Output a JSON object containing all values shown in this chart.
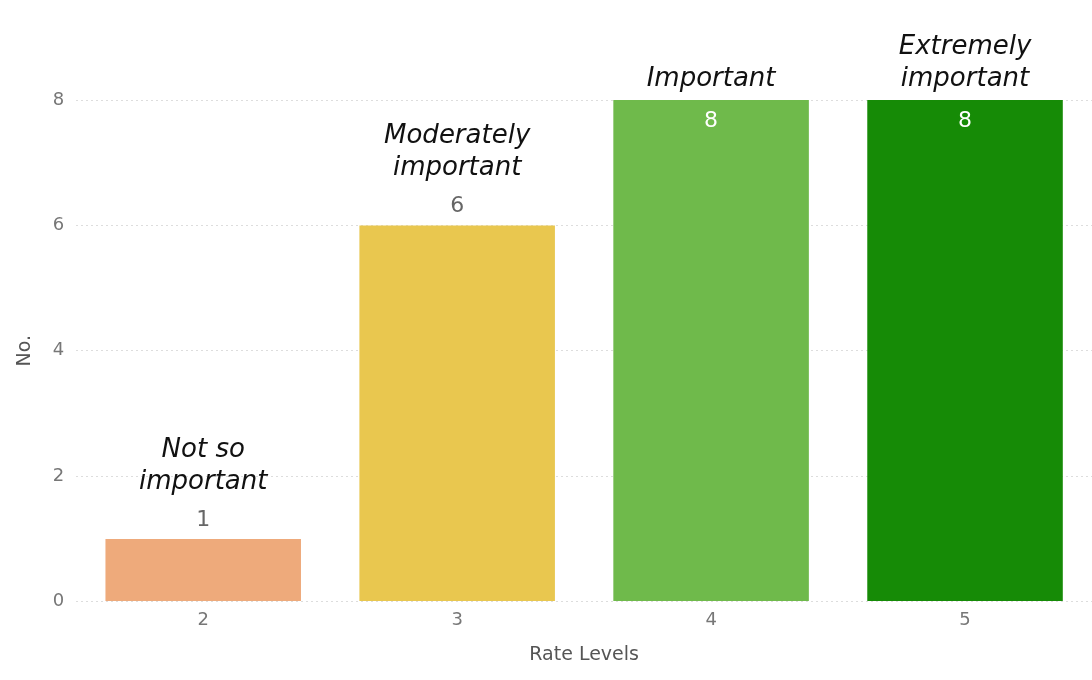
{
  "chart_data": {
    "type": "bar",
    "xlabel": "Rate Levels",
    "ylabel": "No.",
    "categories": [
      "2",
      "3",
      "4",
      "5"
    ],
    "values": [
      1,
      6,
      8,
      8
    ],
    "colors": [
      "#eeaa7b",
      "#e9c74f",
      "#6fba4b",
      "#168b06"
    ],
    "ylim": [
      0,
      8
    ],
    "yticks": [
      0,
      2,
      4,
      6,
      8
    ],
    "grid": "y",
    "legend": false,
    "data_labels": true,
    "annotations": [
      {
        "text": "Not so important",
        "x": "2",
        "y": 1
      },
      {
        "text": "Moderately important",
        "x": "3",
        "y": 6
      },
      {
        "text": "Important",
        "x": "4",
        "y": 8
      },
      {
        "text": "Extremely important",
        "x": "5",
        "y": 8
      }
    ]
  }
}
